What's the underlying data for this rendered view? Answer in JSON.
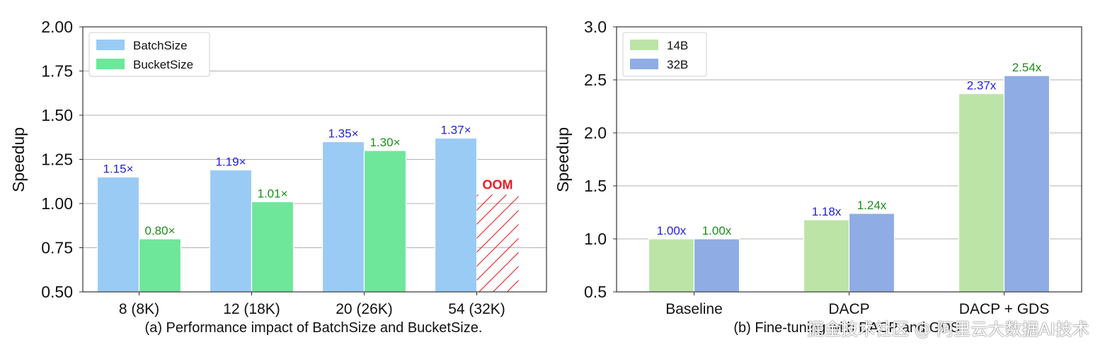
{
  "chart_data": [
    {
      "type": "bar",
      "categories": [
        "8 (8K)",
        "12 (18K)",
        "20 (26K)",
        "54 (32K)"
      ],
      "series": [
        {
          "name": "BatchSize",
          "values": [
            1.15,
            1.19,
            1.35,
            1.37
          ],
          "labels": [
            "1.15×",
            "1.19×",
            "1.35×",
            "1.37×"
          ],
          "color": "#99cbf5",
          "label_color": "#1f1fe0"
        },
        {
          "name": "BucketSize",
          "values": [
            0.8,
            1.01,
            1.3,
            null
          ],
          "labels": [
            "0.80×",
            "1.01×",
            "1.30×",
            ""
          ],
          "color": "#6ee79b",
          "label_color": "#1a8f1a"
        }
      ],
      "annotations": [
        {
          "text": "OOM",
          "series": "BucketSize",
          "category": "54 (32K)",
          "color": "#ee1c25",
          "hatch": true,
          "height_value": 1.05
        }
      ],
      "title": "(a) Performance impact of BatchSize and BucketSize.",
      "xlabel": "",
      "ylabel": "Speedup",
      "ylim": [
        0.5,
        2.0
      ],
      "yticks": [
        "0.50",
        "0.75",
        "1.00",
        "1.25",
        "1.50",
        "1.75",
        "2.00"
      ],
      "grid": "y",
      "legend": "top-left"
    },
    {
      "type": "bar",
      "categories": [
        "Baseline",
        "DACP",
        "DACP + GDS"
      ],
      "series": [
        {
          "name": "14B",
          "values": [
            1.0,
            1.18,
            2.37
          ],
          "labels": [
            "1.00x",
            "1.18x",
            "2.37x"
          ],
          "color": "#bde4a7",
          "label_color": "#1f1fe0"
        },
        {
          "name": "32B",
          "values": [
            1.0,
            1.24,
            2.54
          ],
          "labels": [
            "1.00x",
            "1.24x",
            "2.54x"
          ],
          "color": "#8fade4",
          "label_color": "#1a8f1a"
        }
      ],
      "title": "(b) Fine-tuning with DACP and GDS.",
      "xlabel": "",
      "ylabel": "Speedup",
      "ylim": [
        0.5,
        3.0
      ],
      "yticks": [
        "0.5",
        "1.0",
        "1.5",
        "2.0",
        "2.5",
        "3.0"
      ],
      "grid": "y",
      "legend": "top-left"
    }
  ],
  "watermark": "掘金技术社区 @ 阿里云大数据AI技术"
}
